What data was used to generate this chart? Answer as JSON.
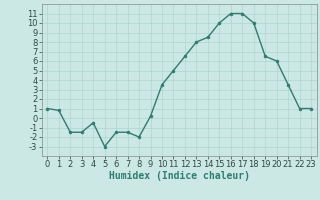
{
  "x": [
    0,
    1,
    2,
    3,
    4,
    5,
    6,
    7,
    8,
    9,
    10,
    11,
    12,
    13,
    14,
    15,
    16,
    17,
    18,
    19,
    20,
    21,
    22,
    23
  ],
  "y": [
    1.0,
    0.8,
    -1.5,
    -1.5,
    -0.5,
    -3.0,
    -1.5,
    -1.5,
    -2.0,
    0.2,
    3.5,
    5.0,
    6.5,
    8.0,
    8.5,
    10.0,
    11.0,
    11.0,
    10.0,
    6.5,
    6.0,
    3.5,
    1.0,
    1.0
  ],
  "line_color": "#2e7d6e",
  "marker_color": "#2e7d6e",
  "bg_color": "#cce8e4",
  "grid_color": "#aed4cf",
  "xlabel": "Humidex (Indice chaleur)",
  "ylim": [
    -4,
    12
  ],
  "xlim": [
    -0.5,
    23.5
  ],
  "yticks": [
    -3,
    -2,
    -1,
    0,
    1,
    2,
    3,
    4,
    5,
    6,
    7,
    8,
    9,
    10,
    11
  ],
  "xticks": [
    0,
    1,
    2,
    3,
    4,
    5,
    6,
    7,
    8,
    9,
    10,
    11,
    12,
    13,
    14,
    15,
    16,
    17,
    18,
    19,
    20,
    21,
    22,
    23
  ],
  "label_fontsize": 7,
  "tick_fontsize": 6
}
